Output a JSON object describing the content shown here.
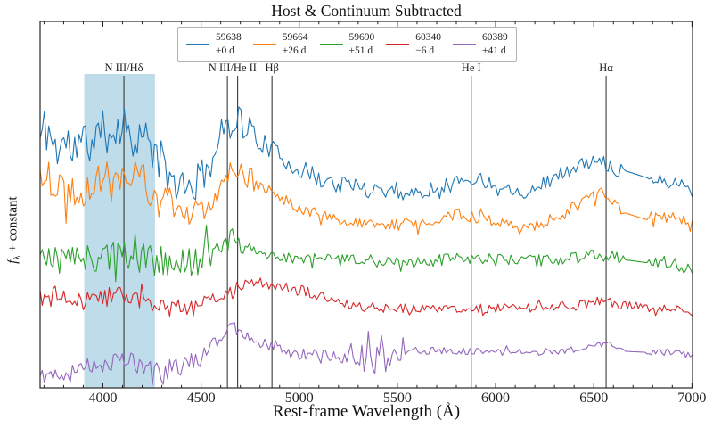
{
  "background": "#ffffff",
  "ylabel_parts": {
    "f": "f",
    "sub": "λ",
    "rest": " + constant"
  },
  "chart_data": {
    "type": "line",
    "title": "Host & Continuum Subtracted",
    "xlabel": "Rest-frame Wavelength (Å)",
    "ylabel": "fλ + constant",
    "x_range": [
      3680,
      7003
    ],
    "x_ticks": [
      4000,
      4500,
      5000,
      5500,
      6000,
      6500,
      7000
    ],
    "x_minor_tick_step": 100,
    "y_axis_note": "flux in arbitrary units (normalized 0-1), constant offsets between epochs",
    "grid": false,
    "legend_position": "top-center",
    "shaded_band": {
      "x0": 3905,
      "x1": 4265,
      "color": "#aed3e4",
      "opacity": 0.8
    },
    "feature_markers": [
      {
        "label": "N III/Hδ",
        "wavelengths": [
          4107
        ]
      },
      {
        "label": "N III/He II",
        "wavelengths": [
          4634,
          4686
        ]
      },
      {
        "label": "Hβ",
        "wavelengths": [
          4861
        ]
      },
      {
        "label": "He I",
        "wavelengths": [
          5876
        ]
      },
      {
        "label": "Hα",
        "wavelengths": [
          6563
        ]
      }
    ],
    "line_color": "#3a3a3a",
    "series": [
      {
        "name": "59638",
        "phase": "+0 d",
        "color": "#1f77b4",
        "seed": 11,
        "gaps": [
          [
            6650,
            6780
          ]
        ],
        "noise": [
          [
            3680,
            4300,
            0.066
          ],
          [
            4300,
            4800,
            0.049
          ],
          [
            4800,
            5600,
            0.027
          ],
          [
            5600,
            6650,
            0.019
          ],
          [
            6780,
            7003,
            0.017
          ]
        ],
        "anchors": [
          [
            3685,
            0.68
          ],
          [
            3700,
            0.71
          ],
          [
            3725,
            0.7
          ],
          [
            3760,
            0.65
          ],
          [
            3800,
            0.67
          ],
          [
            3850,
            0.65
          ],
          [
            3900,
            0.667
          ],
          [
            3950,
            0.679
          ],
          [
            4000,
            0.693
          ],
          [
            4050,
            0.71
          ],
          [
            4100,
            0.718
          ],
          [
            4150,
            0.698
          ],
          [
            4200,
            0.681
          ],
          [
            4250,
            0.657
          ],
          [
            4300,
            0.608
          ],
          [
            4350,
            0.564
          ],
          [
            4420,
            0.535
          ],
          [
            4480,
            0.56
          ],
          [
            4550,
            0.62
          ],
          [
            4600,
            0.681
          ],
          [
            4640,
            0.727
          ],
          [
            4680,
            0.742
          ],
          [
            4720,
            0.718
          ],
          [
            4760,
            0.693
          ],
          [
            4800,
            0.674
          ],
          [
            4900,
            0.633
          ],
          [
            5000,
            0.596
          ],
          [
            5100,
            0.572
          ],
          [
            5200,
            0.555
          ],
          [
            5300,
            0.547
          ],
          [
            5400,
            0.543
          ],
          [
            5500,
            0.54
          ],
          [
            5600,
            0.528
          ],
          [
            5700,
            0.547
          ],
          [
            5800,
            0.564
          ],
          [
            5900,
            0.572
          ],
          [
            6000,
            0.555
          ],
          [
            6100,
            0.54
          ],
          [
            6160,
            0.535
          ],
          [
            6250,
            0.56
          ],
          [
            6350,
            0.589
          ],
          [
            6450,
            0.611
          ],
          [
            6520,
            0.62
          ],
          [
            6570,
            0.611
          ],
          [
            6620,
            0.599
          ],
          [
            6650,
            0.594
          ],
          [
            6780,
            0.572
          ],
          [
            6850,
            0.564
          ],
          [
            6950,
            0.557
          ],
          [
            7000,
            0.533
          ]
        ]
      },
      {
        "name": "59664",
        "phase": "+26 d",
        "color": "#ff7f0e",
        "seed": 22,
        "gaps": [
          [
            6650,
            6780
          ]
        ],
        "noise": [
          [
            3680,
            4500,
            0.051
          ],
          [
            4500,
            4800,
            0.032
          ],
          [
            4800,
            6650,
            0.017
          ],
          [
            6780,
            7003,
            0.022
          ]
        ],
        "anchors": [
          [
            3685,
            0.581
          ],
          [
            3750,
            0.56
          ],
          [
            3800,
            0.547
          ],
          [
            3850,
            0.538
          ],
          [
            3900,
            0.547
          ],
          [
            3950,
            0.557
          ],
          [
            4000,
            0.572
          ],
          [
            4060,
            0.589
          ],
          [
            4120,
            0.596
          ],
          [
            4180,
            0.572
          ],
          [
            4250,
            0.54
          ],
          [
            4300,
            0.513
          ],
          [
            4380,
            0.477
          ],
          [
            4450,
            0.462
          ],
          [
            4520,
            0.487
          ],
          [
            4580,
            0.535
          ],
          [
            4630,
            0.581
          ],
          [
            4670,
            0.606
          ],
          [
            4700,
            0.596
          ],
          [
            4750,
            0.572
          ],
          [
            4800,
            0.55
          ],
          [
            4900,
            0.521
          ],
          [
            5000,
            0.494
          ],
          [
            5100,
            0.474
          ],
          [
            5200,
            0.457
          ],
          [
            5300,
            0.445
          ],
          [
            5400,
            0.443
          ],
          [
            5500,
            0.445
          ],
          [
            5600,
            0.45
          ],
          [
            5700,
            0.462
          ],
          [
            5800,
            0.472
          ],
          [
            5900,
            0.467
          ],
          [
            6000,
            0.455
          ],
          [
            6100,
            0.445
          ],
          [
            6200,
            0.445
          ],
          [
            6300,
            0.462
          ],
          [
            6400,
            0.491
          ],
          [
            6480,
            0.518
          ],
          [
            6530,
            0.535
          ],
          [
            6570,
            0.523
          ],
          [
            6620,
            0.496
          ],
          [
            6650,
            0.479
          ],
          [
            6780,
            0.457
          ],
          [
            6850,
            0.465
          ],
          [
            6900,
            0.47
          ],
          [
            6950,
            0.457
          ],
          [
            7000,
            0.436
          ]
        ]
      },
      {
        "name": "59690",
        "phase": "+51 d",
        "color": "#2ca02c",
        "seed": 33,
        "gaps": [
          [
            6650,
            6780
          ]
        ],
        "noise": [
          [
            3680,
            4550,
            0.044
          ],
          [
            4550,
            4800,
            0.027
          ],
          [
            4800,
            6650,
            0.017
          ],
          [
            6780,
            7003,
            0.017
          ]
        ],
        "anchors": [
          [
            3685,
            0.358
          ],
          [
            3800,
            0.348
          ],
          [
            3900,
            0.353
          ],
          [
            4000,
            0.358
          ],
          [
            4100,
            0.37
          ],
          [
            4200,
            0.353
          ],
          [
            4300,
            0.341
          ],
          [
            4400,
            0.336
          ],
          [
            4500,
            0.353
          ],
          [
            4600,
            0.389
          ],
          [
            4650,
            0.406
          ],
          [
            4700,
            0.389
          ],
          [
            4800,
            0.367
          ],
          [
            4900,
            0.358
          ],
          [
            5000,
            0.353
          ],
          [
            5200,
            0.348
          ],
          [
            5400,
            0.346
          ],
          [
            5600,
            0.343
          ],
          [
            5800,
            0.35
          ],
          [
            6000,
            0.348
          ],
          [
            6200,
            0.346
          ],
          [
            6400,
            0.353
          ],
          [
            6520,
            0.365
          ],
          [
            6570,
            0.36
          ],
          [
            6650,
            0.35
          ],
          [
            6780,
            0.341
          ],
          [
            6900,
            0.343
          ],
          [
            7000,
            0.321
          ]
        ]
      },
      {
        "name": "60340",
        "phase": "−6 d",
        "color": "#d62728",
        "seed": 44,
        "gaps": [],
        "noise": [
          [
            3680,
            4600,
            0.027
          ],
          [
            4600,
            5200,
            0.017
          ],
          [
            5200,
            7003,
            0.012
          ]
        ],
        "anchors": [
          [
            3685,
            0.248
          ],
          [
            3800,
            0.241
          ],
          [
            3900,
            0.238
          ],
          [
            4000,
            0.246
          ],
          [
            4100,
            0.255
          ],
          [
            4200,
            0.238
          ],
          [
            4300,
            0.221
          ],
          [
            4400,
            0.212
          ],
          [
            4500,
            0.226
          ],
          [
            4600,
            0.255
          ],
          [
            4700,
            0.275
          ],
          [
            4800,
            0.285
          ],
          [
            4900,
            0.28
          ],
          [
            5000,
            0.268
          ],
          [
            5100,
            0.248
          ],
          [
            5200,
            0.231
          ],
          [
            5300,
            0.221
          ],
          [
            5400,
            0.217
          ],
          [
            5600,
            0.217
          ],
          [
            5800,
            0.217
          ],
          [
            6000,
            0.217
          ],
          [
            6200,
            0.219
          ],
          [
            6400,
            0.226
          ],
          [
            6520,
            0.236
          ],
          [
            6560,
            0.241
          ],
          [
            6620,
            0.226
          ],
          [
            6800,
            0.219
          ],
          [
            6900,
            0.217
          ],
          [
            7000,
            0.209
          ]
        ]
      },
      {
        "name": "60389",
        "phase": "+41 d",
        "color": "#9467bd",
        "seed": 55,
        "gaps": [
          [
            5535,
            5565
          ],
          [
            6650,
            6770
          ]
        ],
        "noise": [
          [
            3680,
            4500,
            0.027
          ],
          [
            4500,
            5250,
            0.019
          ],
          [
            5250,
            5535,
            0.041
          ],
          [
            5565,
            6650,
            0.01
          ],
          [
            6770,
            7003,
            0.01
          ]
        ],
        "anchors": [
          [
            3685,
            0.036
          ],
          [
            3800,
            0.044
          ],
          [
            3900,
            0.056
          ],
          [
            4000,
            0.066
          ],
          [
            4100,
            0.08
          ],
          [
            4200,
            0.061
          ],
          [
            4300,
            0.049
          ],
          [
            4400,
            0.054
          ],
          [
            4500,
            0.085
          ],
          [
            4600,
            0.139
          ],
          [
            4660,
            0.163
          ],
          [
            4700,
            0.158
          ],
          [
            4800,
            0.129
          ],
          [
            4900,
            0.109
          ],
          [
            5000,
            0.092
          ],
          [
            5100,
            0.085
          ],
          [
            5200,
            0.085
          ],
          [
            5300,
            0.083
          ],
          [
            5400,
            0.078
          ],
          [
            5500,
            0.085
          ],
          [
            5535,
            0.09
          ],
          [
            5565,
            0.105
          ],
          [
            5600,
            0.102
          ],
          [
            5800,
            0.1
          ],
          [
            6000,
            0.097
          ],
          [
            6200,
            0.097
          ],
          [
            6400,
            0.105
          ],
          [
            6520,
            0.114
          ],
          [
            6560,
            0.122
          ],
          [
            6620,
            0.105
          ],
          [
            6650,
            0.1
          ],
          [
            6770,
            0.097
          ],
          [
            6900,
            0.097
          ],
          [
            7000,
            0.088
          ]
        ]
      }
    ]
  }
}
